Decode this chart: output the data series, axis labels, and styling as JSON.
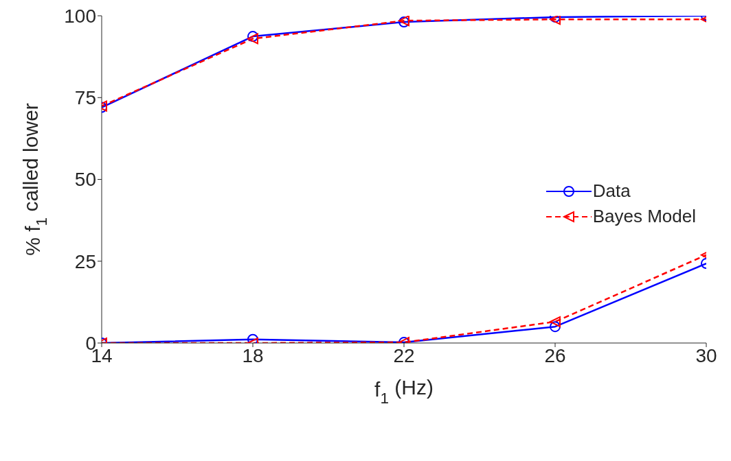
{
  "chart_data": {
    "type": "line",
    "xlabel": "f$_{1}$ (Hz)",
    "ylabel": "% f$_{1}$ called lower",
    "x": [
      14,
      18,
      22,
      26,
      30
    ],
    "xlim": [
      14,
      30
    ],
    "xticks": [
      14,
      18,
      22,
      26,
      30
    ],
    "ylim": [
      0,
      100
    ],
    "yticks": [
      0,
      25,
      50,
      75,
      100
    ],
    "series": [
      {
        "name": "Data",
        "color": "#0000ff",
        "marker": "circle",
        "line_style": "solid",
        "values": [
          72.0,
          93.7,
          98.1,
          99.6,
          100
        ]
      },
      {
        "color": "#0000ff",
        "marker": "circle",
        "line_style": "solid",
        "values": [
          0,
          1.1,
          0.2,
          5.0,
          24.3
        ]
      },
      {
        "name": "Bayes Model",
        "color": "#ff0000",
        "marker": "triangle",
        "line_style": "dashed",
        "values": [
          72.4,
          93.0,
          98.5,
          98.9,
          98.9
        ]
      },
      {
        "color": "#ff0000",
        "marker": "triangle",
        "line_style": "dashed",
        "values": [
          0,
          0,
          0.2,
          6.5,
          26.9
        ]
      }
    ],
    "grid": false,
    "legend": "right"
  }
}
